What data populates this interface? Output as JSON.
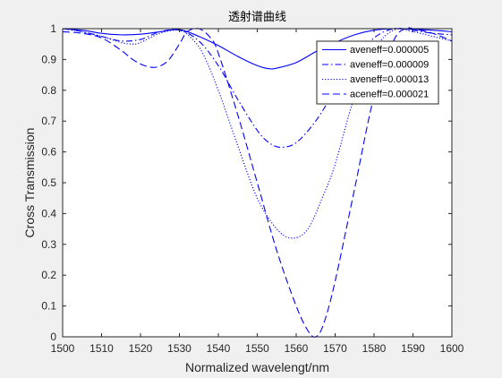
{
  "chart_data": {
    "type": "line",
    "title": "透射谱曲线",
    "xlabel": "Normalized wavelengt/nm",
    "ylabel": "Cross Transmission",
    "xlim": [
      1500,
      1600
    ],
    "ylim": [
      0,
      1
    ],
    "xticks": [
      1500,
      1510,
      1520,
      1530,
      1540,
      1550,
      1560,
      1570,
      1580,
      1590,
      1600
    ],
    "yticks": [
      0,
      0.1,
      0.2,
      0.3,
      0.4,
      0.5,
      0.6,
      0.7,
      0.8,
      0.9,
      1
    ],
    "xtick_labels": [
      "1500",
      "1510",
      "1520",
      "1530",
      "1540",
      "1550",
      "1560",
      "1570",
      "1580",
      "1590",
      "1600"
    ],
    "ytick_labels": [
      "0",
      "0.1",
      "0.2",
      "0.3",
      "0.4",
      "0.5",
      "0.6",
      "0.7",
      "0.8",
      "0.9",
      "1"
    ],
    "grid": false,
    "legend_position": "top-right",
    "line_color": "#0000ff",
    "series": [
      {
        "name": "aveneff=0.000005",
        "style": "solid",
        "x": [
          1500,
          1505,
          1510,
          1515,
          1520,
          1525,
          1530,
          1535,
          1540,
          1545,
          1550,
          1553,
          1555,
          1560,
          1565,
          1570,
          1575,
          1580,
          1585,
          1590,
          1595,
          1600
        ],
        "y": [
          1.0,
          0.995,
          0.985,
          0.98,
          0.982,
          0.99,
          0.997,
          0.975,
          0.945,
          0.91,
          0.88,
          0.87,
          0.872,
          0.89,
          0.925,
          0.955,
          0.98,
          0.995,
          1.0,
          0.998,
          0.995,
          0.99
        ]
      },
      {
        "name": "aveneff=0.000009",
        "style": "dashdot",
        "x": [
          1500,
          1505,
          1510,
          1515,
          1520,
          1525,
          1530,
          1535,
          1540,
          1545,
          1550,
          1553,
          1556,
          1560,
          1565,
          1570,
          1575,
          1580,
          1585,
          1590,
          1595,
          1600
        ],
        "y": [
          1.0,
          0.99,
          0.975,
          0.96,
          0.965,
          0.99,
          0.995,
          0.96,
          0.88,
          0.77,
          0.67,
          0.63,
          0.615,
          0.63,
          0.7,
          0.8,
          0.9,
          0.97,
          1.0,
          0.995,
          0.985,
          0.98
        ]
      },
      {
        "name": "aveneff=0.000013",
        "style": "dotted",
        "x": [
          1500,
          1505,
          1510,
          1515,
          1518,
          1520,
          1525,
          1530,
          1533,
          1536,
          1540,
          1545,
          1550,
          1555,
          1559,
          1563,
          1567,
          1570,
          1575,
          1580,
          1585,
          1590,
          1595,
          1600
        ],
        "y": [
          1.0,
          0.99,
          0.975,
          0.955,
          0.95,
          0.955,
          0.985,
          0.995,
          0.97,
          0.92,
          0.8,
          0.62,
          0.45,
          0.35,
          0.32,
          0.35,
          0.46,
          0.56,
          0.78,
          0.93,
          0.995,
          0.99,
          0.975,
          0.96
        ]
      },
      {
        "name": "aceneff=0.000021",
        "style": "dashed",
        "x": [
          1500,
          1505,
          1510,
          1515,
          1518,
          1521,
          1524,
          1527,
          1530,
          1532,
          1535,
          1538,
          1540,
          1545,
          1550,
          1555,
          1560,
          1563,
          1565,
          1567,
          1570,
          1575,
          1580,
          1585,
          1588,
          1590,
          1595,
          1600
        ],
        "y": [
          0.99,
          0.985,
          0.97,
          0.93,
          0.9,
          0.88,
          0.875,
          0.895,
          0.95,
          0.99,
          1.0,
          0.97,
          0.92,
          0.72,
          0.5,
          0.28,
          0.1,
          0.02,
          0.0,
          0.04,
          0.18,
          0.48,
          0.78,
          0.96,
          1.0,
          1.0,
          0.985,
          0.96
        ]
      }
    ]
  }
}
